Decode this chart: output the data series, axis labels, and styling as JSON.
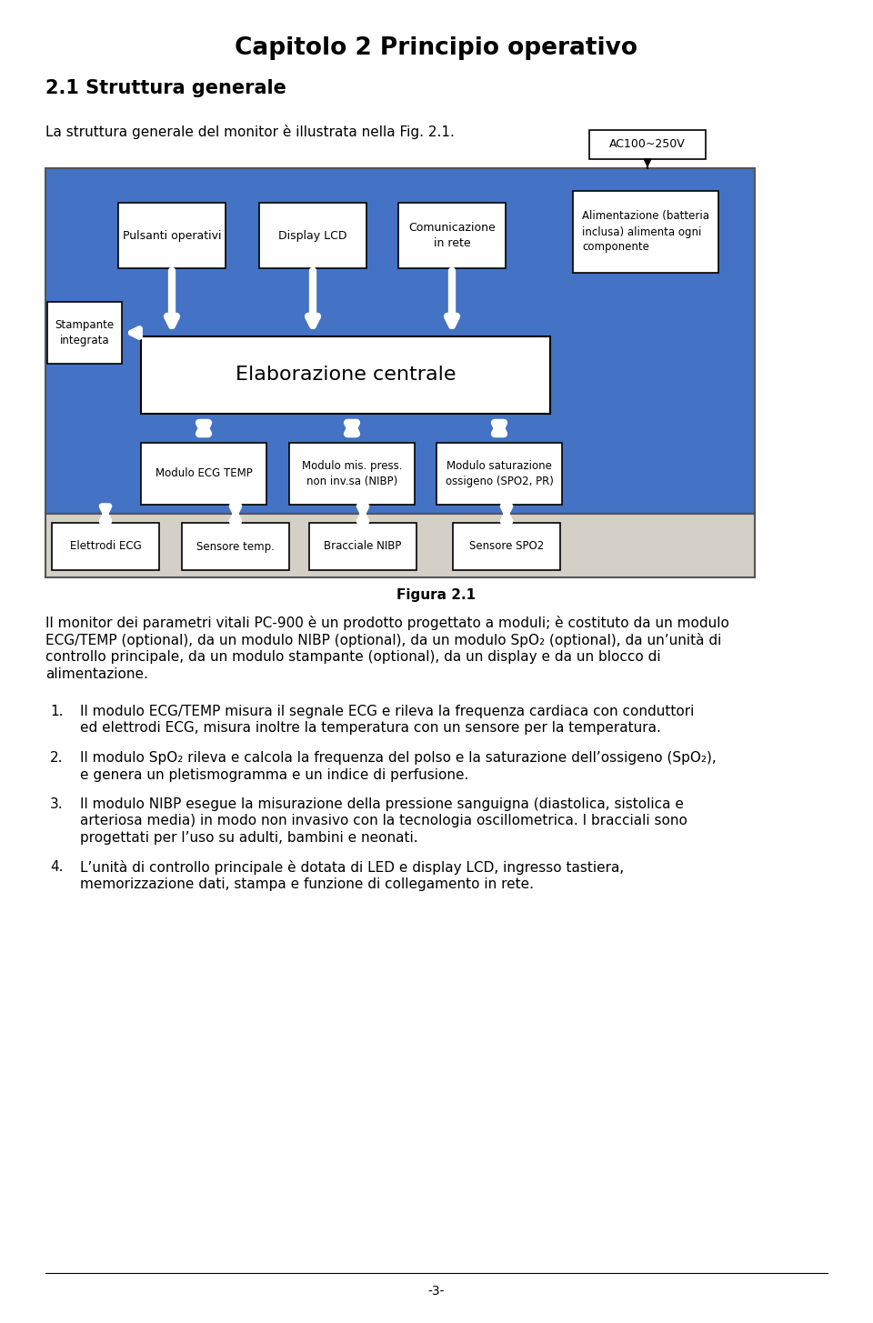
{
  "title": "Capitolo 2 Principio operativo",
  "section_title": "2.1 Struttura generale",
  "intro_text": "La struttura generale del monitor è illustrata nella Fig. 2.1.",
  "figure_label": "Figura 2.1",
  "bg_color": "#ffffff",
  "blue_bg": "#4472c4",
  "gray_bg": "#d4d0c8",
  "box_bg": "#ffffff",
  "ac_label": "AC100~250V",
  "top_boxes": [
    "Pulsanti operativi",
    "Display LCD",
    "Comunicazione\nin rete"
  ],
  "left_box": "Stampante\nintegrata",
  "central_box": "Elaborazione centrale",
  "power_box": "Alimentazione (batteria\ninclusa) alimenta ogni\ncomponente",
  "middle_boxes": [
    "Modulo ECG TEMP",
    "Modulo mis. press.\nnon inv.sa (NIBP)",
    "Modulo saturazione\nossigeno (SPO2, PR)"
  ],
  "bottom_boxes": [
    "Elettrodi ECG",
    "Sensore temp.",
    "Bracciale NIBP",
    "Sensore SPO2"
  ],
  "paragraph_parts": [
    {
      "text": "Il monitor dei parametri vitali PC-900 è un prodotto progettato a moduli; è costituto da un modulo ECG/TEMP (optional), da un modulo NIBP (optional), da un modulo SpO",
      "sub": false
    },
    {
      "text": "2",
      "sub": true
    },
    {
      "text": " (optional), da un’unità di controllo principale, da un modulo stampante (optional), da un display e da un blocco di alimentazione.",
      "sub": false
    }
  ],
  "para_line1": "Il monitor dei parametri vitali PC-900 è un prodotto progettato a moduli; è costituto da un modulo",
  "para_line2": "ECG/TEMP (optional), da un modulo NIBP (optional), da un modulo SpO₂ (optional), da un’unità di",
  "para_line3": "controllo principale, da un modulo stampante (optional), da un display e da un blocco di",
  "para_line4": "alimentazione.",
  "list_item1_line1": "Il modulo ECG/TEMP misura il segnale ECG e rileva la frequenza cardiaca con conduttori",
  "list_item1_line2": "ed elettrodi ECG, misura inoltre la temperatura con un sensore per la temperatura.",
  "list_item2_line1": "Il modulo SpO₂ rileva e calcola la frequenza del polso e la saturazione dell’ossigeno (SpO₂),",
  "list_item2_line2": "e genera un pletismogramma e un indice di perfusione.",
  "list_item3_line1": "Il modulo NIBP esegue la misurazione della pressione sanguigna (diastolica, sistolica e",
  "list_item3_line2": "arteriosa media) in modo non invasivo con la tecnologia oscillometrica. I bracciali sono",
  "list_item3_line3": "progettati per l’uso su adulti, bambini e neonati.",
  "list_item4_line1": "L’unità di controllo principale è dotata di LED e display LCD, ingresso tastiera,",
  "list_item4_line2": "memorizzazione dati, stampa e funzione di collegamento in rete.",
  "footer": "-3-"
}
